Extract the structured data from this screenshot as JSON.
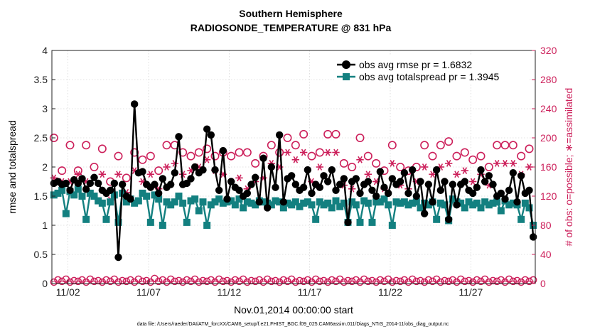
{
  "chart_data": {
    "type": "line",
    "title": "Southern Hemisphere",
    "subtitle": "RADIOSONDE_TEMPERATURE @ 831 hPa",
    "xlabel": "Nov.01,2014 00:00:00 start",
    "ylabel": "rmse and totalspread",
    "ylabel_right": "# of obs: o=possible; ∗=assimilated",
    "footnote": "data file: /Users/raeder/DAI/ATM_forcXX/CAM6_setup/f.e21.FHIST_BGC.f09_025.CAM6assim.011/Diags_NTrS_2014-11/obs_diag_output.nc",
    "x_range_days": [
      0.5,
      30.5
    ],
    "ylim": [
      0,
      4
    ],
    "ylim_right": [
      0,
      320
    ],
    "y_ticks": [
      "0",
      "0.5",
      "1",
      "1.5",
      "2",
      "2.5",
      "3",
      "3.5",
      "4"
    ],
    "y_right_ticks": [
      "0",
      "40",
      "80",
      "120",
      "160",
      "200",
      "240",
      "280",
      "320"
    ],
    "x_ticks": [
      {
        "day": 1.5,
        "label": "11/02"
      },
      {
        "day": 6.5,
        "label": "11/07"
      },
      {
        "day": 11.5,
        "label": "11/12"
      },
      {
        "day": 16.5,
        "label": "11/17"
      },
      {
        "day": 21.5,
        "label": "11/22"
      },
      {
        "day": 26.5,
        "label": "11/27"
      }
    ],
    "grid": true,
    "legend_position": "top-right",
    "colors": {
      "rmse": "#000000",
      "spread": "#138080",
      "counts": "#cc1f5a"
    },
    "series": [
      {
        "name": "obs avg rmse pr = 1.6832",
        "marker": "circle",
        "x": [
          0.625,
          0.875,
          1.125,
          1.375,
          1.625,
          1.875,
          2.125,
          2.375,
          2.625,
          2.875,
          3.125,
          3.375,
          3.625,
          3.875,
          4.125,
          4.375,
          4.625,
          4.875,
          5.125,
          5.375,
          5.625,
          5.875,
          6.125,
          6.375,
          6.625,
          6.875,
          7.125,
          7.375,
          7.625,
          7.875,
          8.125,
          8.375,
          8.625,
          8.875,
          9.125,
          9.375,
          9.625,
          9.875,
          10.125,
          10.375,
          10.625,
          10.875,
          11.125,
          11.375,
          11.625,
          11.875,
          12.125,
          12.375,
          12.625,
          12.875,
          13.125,
          13.375,
          13.625,
          13.875,
          14.125,
          14.375,
          14.625,
          14.875,
          15.125,
          15.375,
          15.625,
          15.875,
          16.125,
          16.375,
          16.625,
          16.875,
          17.125,
          17.375,
          17.625,
          17.875,
          18.125,
          18.375,
          18.625,
          18.875,
          19.125,
          19.375,
          19.625,
          19.875,
          20.125,
          20.375,
          20.625,
          20.875,
          21.125,
          21.375,
          21.625,
          21.875,
          22.125,
          22.375,
          22.625,
          22.875,
          23.125,
          23.375,
          23.625,
          23.875,
          24.125,
          24.375,
          24.625,
          24.875,
          25.125,
          25.375,
          25.625,
          25.875,
          26.125,
          26.375,
          26.625,
          26.875,
          27.125,
          27.375,
          27.625,
          27.875,
          28.125,
          28.375,
          28.625,
          28.875,
          29.125,
          29.375,
          29.625,
          29.875,
          30.125,
          30.375
        ],
        "y": [
          1.72,
          1.75,
          1.7,
          1.72,
          1.6,
          1.78,
          1.72,
          1.8,
          1.62,
          1.72,
          1.82,
          1.72,
          1.6,
          1.55,
          1.6,
          1.72,
          0.45,
          1.7,
          1.5,
          1.45,
          3.08,
          1.9,
          1.92,
          1.7,
          1.65,
          1.7,
          1.55,
          1.8,
          1.65,
          1.7,
          1.9,
          2.52,
          1.7,
          1.72,
          1.8,
          2.0,
          1.9,
          1.95,
          2.65,
          2.55,
          1.95,
          1.6,
          2.28,
          1.45,
          1.75,
          1.65,
          1.6,
          1.5,
          1.55,
          1.7,
          1.82,
          1.4,
          2.15,
          1.3,
          2.0,
          1.65,
          2.55,
          1.4,
          1.8,
          1.85,
          1.7,
          1.6,
          1.65,
          1.95,
          1.55,
          1.7,
          1.65,
          1.85,
          1.75,
          1.95,
          1.6,
          1.7,
          1.8,
          1.05,
          1.75,
          1.8,
          1.55,
          1.7,
          1.75,
          1.6,
          1.5,
          1.92,
          1.65,
          1.55,
          1.8,
          1.7,
          1.75,
          1.9,
          1.55,
          1.95,
          1.5,
          1.75,
          1.2,
          1.7,
          1.4,
          1.95,
          1.6,
          1.75,
          1.1,
          1.7,
          1.35,
          1.7,
          1.75,
          1.6,
          1.55,
          1.65,
          1.95,
          1.75,
          1.85,
          1.7,
          1.5,
          1.55,
          1.45,
          1.6,
          1.9,
          1.4,
          1.85,
          1.55,
          1.6,
          0.8
        ]
      },
      {
        "name": "obs avg totalspread pr = 1.3945",
        "marker": "square",
        "x": [
          0.625,
          0.875,
          1.125,
          1.375,
          1.625,
          1.875,
          2.125,
          2.375,
          2.625,
          2.875,
          3.125,
          3.375,
          3.625,
          3.875,
          4.125,
          4.375,
          4.625,
          4.875,
          5.125,
          5.375,
          5.625,
          5.875,
          6.125,
          6.375,
          6.625,
          6.875,
          7.125,
          7.375,
          7.625,
          7.875,
          8.125,
          8.375,
          8.625,
          8.875,
          9.125,
          9.375,
          9.625,
          9.875,
          10.125,
          10.375,
          10.625,
          10.875,
          11.125,
          11.375,
          11.625,
          11.875,
          12.125,
          12.375,
          12.625,
          12.875,
          13.125,
          13.375,
          13.625,
          13.875,
          14.125,
          14.375,
          14.625,
          14.875,
          15.125,
          15.375,
          15.625,
          15.875,
          16.125,
          16.375,
          16.625,
          16.875,
          17.125,
          17.375,
          17.625,
          17.875,
          18.125,
          18.375,
          18.625,
          18.875,
          19.125,
          19.375,
          19.625,
          19.875,
          20.125,
          20.375,
          20.625,
          20.875,
          21.125,
          21.375,
          21.625,
          21.875,
          22.125,
          22.375,
          22.625,
          22.875,
          23.125,
          23.375,
          23.625,
          23.875,
          24.125,
          24.375,
          24.625,
          24.875,
          25.125,
          25.375,
          25.625,
          25.875,
          26.125,
          26.375,
          26.625,
          26.875,
          27.125,
          27.375,
          27.625,
          27.875,
          28.125,
          28.375,
          28.625,
          28.875,
          29.125,
          29.375,
          29.625,
          29.875,
          30.125,
          30.375
        ],
        "y": [
          1.52,
          1.55,
          1.6,
          1.2,
          1.58,
          1.52,
          1.62,
          1.5,
          1.1,
          1.55,
          1.5,
          1.42,
          1.38,
          1.1,
          1.4,
          1.52,
          1.05,
          1.55,
          1.4,
          1.45,
          1.38,
          1.42,
          1.55,
          1.5,
          1.05,
          1.52,
          1.45,
          1.0,
          1.4,
          1.35,
          1.4,
          1.5,
          1.38,
          1.05,
          1.42,
          1.45,
          1.25,
          1.4,
          1.0,
          1.35,
          1.4,
          1.45,
          1.38,
          1.4,
          1.42,
          1.35,
          1.45,
          1.3,
          1.4,
          1.38,
          1.35,
          1.42,
          1.4,
          1.38,
          1.35,
          1.42,
          1.4,
          1.3,
          1.38,
          1.35,
          1.4,
          1.32,
          1.38,
          1.4,
          1.35,
          1.1,
          1.4,
          1.35,
          1.38,
          1.3,
          1.42,
          1.32,
          1.38,
          1.05,
          1.4,
          1.35,
          1.05,
          1.42,
          1.38,
          1.05,
          1.4,
          1.4,
          1.45,
          1.35,
          1.0,
          1.4,
          1.38,
          1.4,
          1.35,
          1.38,
          1.4,
          1.3,
          1.38,
          1.35,
          1.4,
          1.1,
          1.38,
          1.35,
          1.08,
          1.45,
          1.4,
          1.38,
          1.3,
          1.4,
          1.35,
          1.38,
          1.3,
          1.4,
          1.35,
          1.38,
          1.4,
          1.25,
          1.42,
          1.35,
          1.38,
          1.35,
          1.1,
          1.38,
          1.3,
          1.0
        ]
      },
      {
        "name": "possible",
        "marker": "open-circle",
        "x": [
          0.625,
          1.125,
          1.625,
          2.125,
          2.625,
          3.125,
          3.625,
          4.125,
          4.625,
          5.125,
          5.625,
          6.125,
          6.625,
          7.125,
          7.625,
          8.125,
          8.625,
          9.125,
          9.625,
          10.125,
          10.625,
          11.125,
          11.625,
          12.125,
          12.625,
          13.125,
          13.625,
          14.125,
          14.625,
          15.125,
          15.625,
          16.125,
          16.625,
          17.125,
          17.625,
          18.125,
          18.625,
          19.125,
          19.625,
          20.125,
          20.625,
          21.125,
          21.625,
          22.125,
          22.625,
          23.125,
          23.625,
          24.125,
          24.625,
          25.125,
          25.625,
          26.125,
          26.625,
          27.125,
          27.625,
          28.125,
          28.625,
          29.125,
          29.625,
          30.125
        ],
        "y": [
          200,
          155,
          190,
          155,
          190,
          160,
          185,
          140,
          175,
          145,
          180,
          170,
          175,
          155,
          190,
          190,
          180,
          175,
          180,
          185,
          175,
          180,
          175,
          180,
          180,
          165,
          175,
          190,
          180,
          200,
          190,
          205,
          175,
          180,
          205,
          205,
          165,
          160,
          200,
          175,
          165,
          155,
          190,
          160,
          155,
          160,
          190,
          175,
          190,
          195,
          175,
          180,
          170,
          175,
          160,
          190,
          190,
          190,
          175,
          185
        ]
      },
      {
        "name": "assimilated",
        "marker": "asterisk",
        "x": [
          0.625,
          1.125,
          1.625,
          2.125,
          2.625,
          3.125,
          3.625,
          4.125,
          4.625,
          5.125,
          5.625,
          6.125,
          6.625,
          7.125,
          7.625,
          8.125,
          8.625,
          9.125,
          9.625,
          10.125,
          10.625,
          11.125,
          11.625,
          12.125,
          12.625,
          13.125,
          13.625,
          14.125,
          14.625,
          15.125,
          15.625,
          16.125,
          16.625,
          17.125,
          17.625,
          18.125,
          18.625,
          19.125,
          19.625,
          20.125,
          20.625,
          21.125,
          21.625,
          22.125,
          22.625,
          23.125,
          23.625,
          24.125,
          24.625,
          25.125,
          25.625,
          26.125,
          26.625,
          27.125,
          27.625,
          28.125,
          28.625,
          29.125,
          29.625,
          30.125
        ],
        "y": [
          145,
          140,
          140,
          150,
          140,
          145,
          150,
          115,
          150,
          125,
          155,
          140,
          150,
          130,
          160,
          165,
          150,
          155,
          160,
          170,
          155,
          150,
          140,
          145,
          130,
          140,
          145,
          165,
          160,
          180,
          170,
          180,
          140,
          160,
          180,
          180,
          135,
          130,
          170,
          150,
          140,
          130,
          165,
          135,
          130,
          140,
          160,
          150,
          160,
          165,
          150,
          155,
          140,
          150,
          135,
          165,
          165,
          165,
          150,
          160
        ]
      },
      {
        "name": "possible-low",
        "marker": "open-circle",
        "x": [
          0.625,
          0.875,
          1.125,
          1.375,
          1.625,
          1.875,
          2.125,
          2.375,
          2.625,
          2.875,
          3.125,
          3.375,
          3.625,
          3.875,
          4.125,
          4.375,
          4.625,
          4.875,
          5.125,
          5.375,
          5.625,
          5.875,
          6.125,
          6.375,
          6.625,
          6.875,
          7.125,
          7.375,
          7.625,
          7.875,
          8.125,
          8.375,
          8.625,
          8.875,
          9.125,
          9.375,
          9.625,
          9.875,
          10.125,
          10.375,
          10.625,
          10.875,
          11.125,
          11.375,
          11.625,
          11.875,
          12.125,
          12.375,
          12.625,
          12.875,
          13.125,
          13.375,
          13.625,
          13.875,
          14.125,
          14.375,
          14.625,
          14.875,
          15.125,
          15.375,
          15.625,
          15.875,
          16.125,
          16.375,
          16.625,
          16.875,
          17.125,
          17.375,
          17.625,
          17.875,
          18.125,
          18.375,
          18.625,
          18.875,
          19.125,
          19.375,
          19.625,
          19.875,
          20.125,
          20.375,
          20.625,
          20.875,
          21.125,
          21.375,
          21.625,
          21.875,
          22.125,
          22.375,
          22.625,
          22.875,
          23.125,
          23.375,
          23.625,
          23.875,
          24.125,
          24.375,
          24.625,
          24.875,
          25.125,
          25.375,
          25.625,
          25.875,
          26.125,
          26.375,
          26.625,
          26.875,
          27.125,
          27.375,
          27.625,
          27.875,
          28.125,
          28.375,
          28.625,
          28.875,
          29.125,
          29.375,
          29.625,
          29.875,
          30.125,
          30.375
        ],
        "y": [
          2,
          5,
          3,
          6,
          2,
          4,
          3,
          5,
          2,
          6,
          3,
          4,
          2,
          5,
          3,
          6,
          2,
          4,
          3,
          5,
          2,
          6,
          3,
          4,
          2,
          7,
          3,
          5,
          2,
          6,
          3,
          4,
          2,
          5,
          3,
          6,
          2,
          4,
          3,
          5,
          2,
          6,
          3,
          4,
          2,
          5,
          3,
          6,
          2,
          4,
          3,
          5,
          2,
          6,
          3,
          4,
          2,
          5,
          3,
          6,
          2,
          4,
          3,
          5,
          2,
          6,
          3,
          4,
          2,
          5,
          3,
          6,
          2,
          4,
          3,
          5,
          2,
          6,
          3,
          4,
          2,
          5,
          3,
          6,
          2,
          4,
          3,
          5,
          2,
          6,
          3,
          4,
          2,
          5,
          3,
          6,
          2,
          4,
          3,
          5,
          2,
          6,
          3,
          4,
          2,
          5,
          3,
          6,
          2,
          4,
          3,
          5,
          2,
          6,
          3,
          4,
          2,
          5,
          3,
          5
        ]
      }
    ]
  }
}
